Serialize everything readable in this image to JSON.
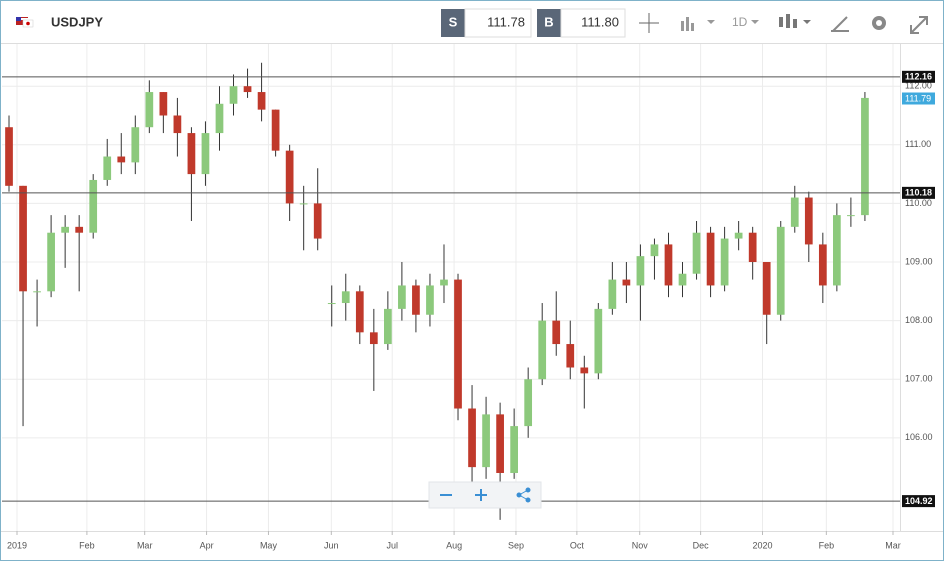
{
  "header": {
    "symbol": "USDJPY",
    "sell_label": "S",
    "sell": "111.78",
    "buy_label": "B",
    "buy": "111.80",
    "timeframe": "1D"
  },
  "chart_data": {
    "type": "candlestick",
    "x": [
      0,
      1,
      2,
      3,
      4,
      5,
      6,
      7,
      8,
      9,
      10,
      11,
      12,
      13,
      14,
      15,
      16,
      17,
      18,
      19,
      20,
      21,
      22,
      23,
      24,
      25,
      26,
      27,
      28,
      29,
      30,
      31,
      32,
      33,
      34,
      35,
      36,
      37,
      38,
      39,
      40,
      41,
      42,
      43,
      44,
      45,
      46,
      47,
      48,
      49,
      50,
      51,
      52,
      53,
      54,
      55,
      56,
      57,
      58,
      59,
      60,
      61
    ],
    "open": [
      111.3,
      110.3,
      108.5,
      108.5,
      109.5,
      109.6,
      109.5,
      110.4,
      110.8,
      110.7,
      111.3,
      111.9,
      111.5,
      111.2,
      110.5,
      111.2,
      111.7,
      112.0,
      111.9,
      111.6,
      110.9,
      110.0,
      110.0,
      108.3,
      108.3,
      108.5,
      107.8,
      107.6,
      108.2,
      108.6,
      108.1,
      108.6,
      108.7,
      106.5,
      105.5,
      106.4,
      105.4,
      106.2,
      107.0,
      108.0,
      107.6,
      107.2,
      107.1,
      108.2,
      108.7,
      108.6,
      109.1,
      109.3,
      108.6,
      108.8,
      109.5,
      108.6,
      109.4,
      109.5,
      109.0,
      108.1,
      109.6,
      110.1,
      109.3,
      108.6,
      109.8,
      109.8
    ],
    "high": [
      111.5,
      110.3,
      108.7,
      109.8,
      109.8,
      109.8,
      110.5,
      111.1,
      111.2,
      111.5,
      112.1,
      111.9,
      111.8,
      111.3,
      111.4,
      112.0,
      112.2,
      112.3,
      112.4,
      111.6,
      111.0,
      110.3,
      110.6,
      108.6,
      108.8,
      108.6,
      108.2,
      108.5,
      109.0,
      108.7,
      108.8,
      109.3,
      108.8,
      106.9,
      106.7,
      106.6,
      106.5,
      107.2,
      108.3,
      108.5,
      108.0,
      107.4,
      108.3,
      109.0,
      109.0,
      109.3,
      109.4,
      109.5,
      109.0,
      109.7,
      109.6,
      109.6,
      109.7,
      109.6,
      109.0,
      109.7,
      110.3,
      110.2,
      109.5,
      110.0,
      110.1,
      111.9
    ],
    "low": [
      110.2,
      106.2,
      107.9,
      108.4,
      108.9,
      108.5,
      109.4,
      110.3,
      110.5,
      110.5,
      111.2,
      111.2,
      110.8,
      109.7,
      110.3,
      110.9,
      111.5,
      111.8,
      111.4,
      110.8,
      109.7,
      109.2,
      109.2,
      107.9,
      108.0,
      107.6,
      106.8,
      107.5,
      108.0,
      107.8,
      107.9,
      108.3,
      106.3,
      105.2,
      105.3,
      104.6,
      105.3,
      106.0,
      106.9,
      107.4,
      107.0,
      106.5,
      107.0,
      108.1,
      108.3,
      108.0,
      108.7,
      108.4,
      108.4,
      108.7,
      108.4,
      108.5,
      109.2,
      108.7,
      107.6,
      108.0,
      109.5,
      109.0,
      108.3,
      108.5,
      109.6,
      109.7
    ],
    "close": [
      110.3,
      108.5,
      108.5,
      109.5,
      109.6,
      109.5,
      110.4,
      110.8,
      110.7,
      111.3,
      111.9,
      111.5,
      111.2,
      110.5,
      111.2,
      111.7,
      112.0,
      111.9,
      111.6,
      110.9,
      110.0,
      110.0,
      109.4,
      108.3,
      108.5,
      107.8,
      107.6,
      108.2,
      108.6,
      108.1,
      108.6,
      108.7,
      106.5,
      105.5,
      106.4,
      105.4,
      106.2,
      107.0,
      108.0,
      107.6,
      107.2,
      107.1,
      108.2,
      108.7,
      108.6,
      109.1,
      109.3,
      108.6,
      108.8,
      109.5,
      108.6,
      109.4,
      109.5,
      109.0,
      108.1,
      109.6,
      110.1,
      109.3,
      108.6,
      109.8,
      109.8,
      111.8
    ],
    "up_color": "#8cc97c",
    "down_color": "#c0392b",
    "xlim": [
      -0.5,
      63.5
    ],
    "xticks": [
      {
        "value": 0.57,
        "label": "2019"
      },
      {
        "value": 5.55,
        "label": "Feb"
      },
      {
        "value": 9.67,
        "label": "Mar"
      },
      {
        "value": 14.08,
        "label": "Apr"
      },
      {
        "value": 18.49,
        "label": "May"
      },
      {
        "value": 22.97,
        "label": "Jun"
      },
      {
        "value": 27.31,
        "label": "Jul"
      },
      {
        "value": 31.72,
        "label": "Aug"
      },
      {
        "value": 36.13,
        "label": "Sep"
      },
      {
        "value": 40.47,
        "label": "Oct"
      },
      {
        "value": 44.95,
        "label": "Nov"
      },
      {
        "value": 49.29,
        "label": "Dec"
      },
      {
        "value": 53.7,
        "label": "2020"
      },
      {
        "value": 58.25,
        "label": "Feb"
      },
      {
        "value": 63.0,
        "label": "Mar"
      }
    ],
    "ylim": [
      104.41,
      112.72
    ],
    "yticks": [
      {
        "value": 106,
        "label": "106.00"
      },
      {
        "value": 107,
        "label": "107.00"
      },
      {
        "value": 108,
        "label": "108.00"
      },
      {
        "value": 109,
        "label": "109.00"
      },
      {
        "value": 110,
        "label": "110.00"
      },
      {
        "value": 111,
        "label": "111.00"
      },
      {
        "value": 112,
        "label": "112.00"
      }
    ],
    "levels": [
      112.16,
      110.18,
      104.92
    ],
    "last_price": 111.79,
    "grid": true
  }
}
